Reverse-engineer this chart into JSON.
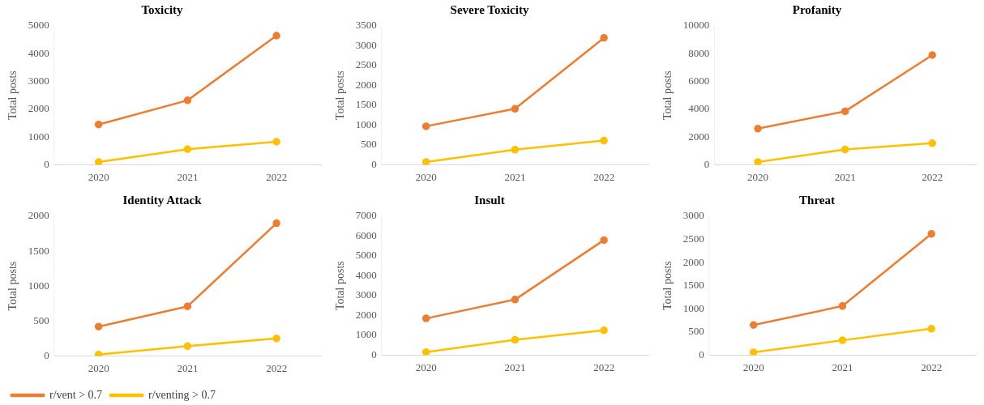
{
  "chart_data": [
    {
      "type": "line",
      "title": "Toxicity",
      "ylabel": "Total posts",
      "categories": [
        "2020",
        "2021",
        "2022"
      ],
      "ylim": [
        0,
        5000
      ],
      "yticks": [
        0,
        1000,
        2000,
        3000,
        4000,
        5000
      ],
      "grid": false,
      "legend": false,
      "marker": "circle",
      "series": [
        {
          "color": "#ed7d31",
          "values": [
            1450,
            2320,
            4650
          ]
        },
        {
          "color": "#ffc000",
          "values": [
            100,
            560,
            830
          ]
        }
      ]
    },
    {
      "type": "line",
      "title": "Severe Toxicity",
      "ylabel": "Total posts",
      "categories": [
        "2020",
        "2021",
        "2022"
      ],
      "ylim": [
        0,
        3500
      ],
      "yticks": [
        0,
        500,
        1000,
        1500,
        2000,
        2500,
        3000,
        3500
      ],
      "grid": false,
      "legend": false,
      "marker": "circle",
      "series": [
        {
          "color": "#ed7d31",
          "values": [
            970,
            1410,
            3200
          ]
        },
        {
          "color": "#ffc000",
          "values": [
            70,
            380,
            610
          ]
        }
      ]
    },
    {
      "type": "line",
      "title": "Profanity",
      "ylabel": "Total posts",
      "categories": [
        "2020",
        "2021",
        "2022"
      ],
      "ylim": [
        0,
        10000
      ],
      "yticks": [
        0,
        2000,
        4000,
        6000,
        8000,
        10000
      ],
      "grid": false,
      "legend": false,
      "marker": "circle",
      "series": [
        {
          "color": "#ed7d31",
          "values": [
            2600,
            3850,
            7900
          ]
        },
        {
          "color": "#ffc000",
          "values": [
            200,
            1100,
            1550
          ]
        }
      ]
    },
    {
      "type": "line",
      "title": "Identity Attack",
      "ylabel": "Total posts",
      "categories": [
        "2020",
        "2021",
        "2022"
      ],
      "ylim": [
        0,
        2000
      ],
      "yticks": [
        0,
        500,
        1000,
        1500,
        2000
      ],
      "grid": false,
      "legend": "bottom",
      "marker": "circle",
      "series": [
        {
          "name": "r/vent > 0.7",
          "color": "#ed7d31",
          "values": [
            420,
            710,
            1900
          ]
        },
        {
          "name": "r/venting > 0.7",
          "color": "#ffc000",
          "values": [
            20,
            140,
            250
          ]
        }
      ]
    },
    {
      "type": "line",
      "title": "Insult",
      "ylabel": "Total posts",
      "categories": [
        "2020",
        "2021",
        "2022"
      ],
      "ylim": [
        0,
        7000
      ],
      "yticks": [
        0,
        1000,
        2000,
        3000,
        4000,
        5000,
        6000,
        7000
      ],
      "grid": false,
      "legend": false,
      "marker": "circle",
      "series": [
        {
          "color": "#ed7d31",
          "values": [
            1850,
            2800,
            5800
          ]
        },
        {
          "color": "#ffc000",
          "values": [
            150,
            770,
            1250
          ]
        }
      ]
    },
    {
      "type": "line",
      "title": "Threat",
      "ylabel": "Total posts",
      "categories": [
        "2020",
        "2021",
        "2022"
      ],
      "ylim": [
        0,
        3000
      ],
      "yticks": [
        0,
        500,
        1000,
        1500,
        2000,
        2500,
        3000
      ],
      "grid": false,
      "legend": false,
      "marker": "circle",
      "series": [
        {
          "color": "#ed7d31",
          "values": [
            650,
            1060,
            2620
          ]
        },
        {
          "color": "#ffc000",
          "values": [
            60,
            320,
            570
          ]
        }
      ]
    }
  ]
}
